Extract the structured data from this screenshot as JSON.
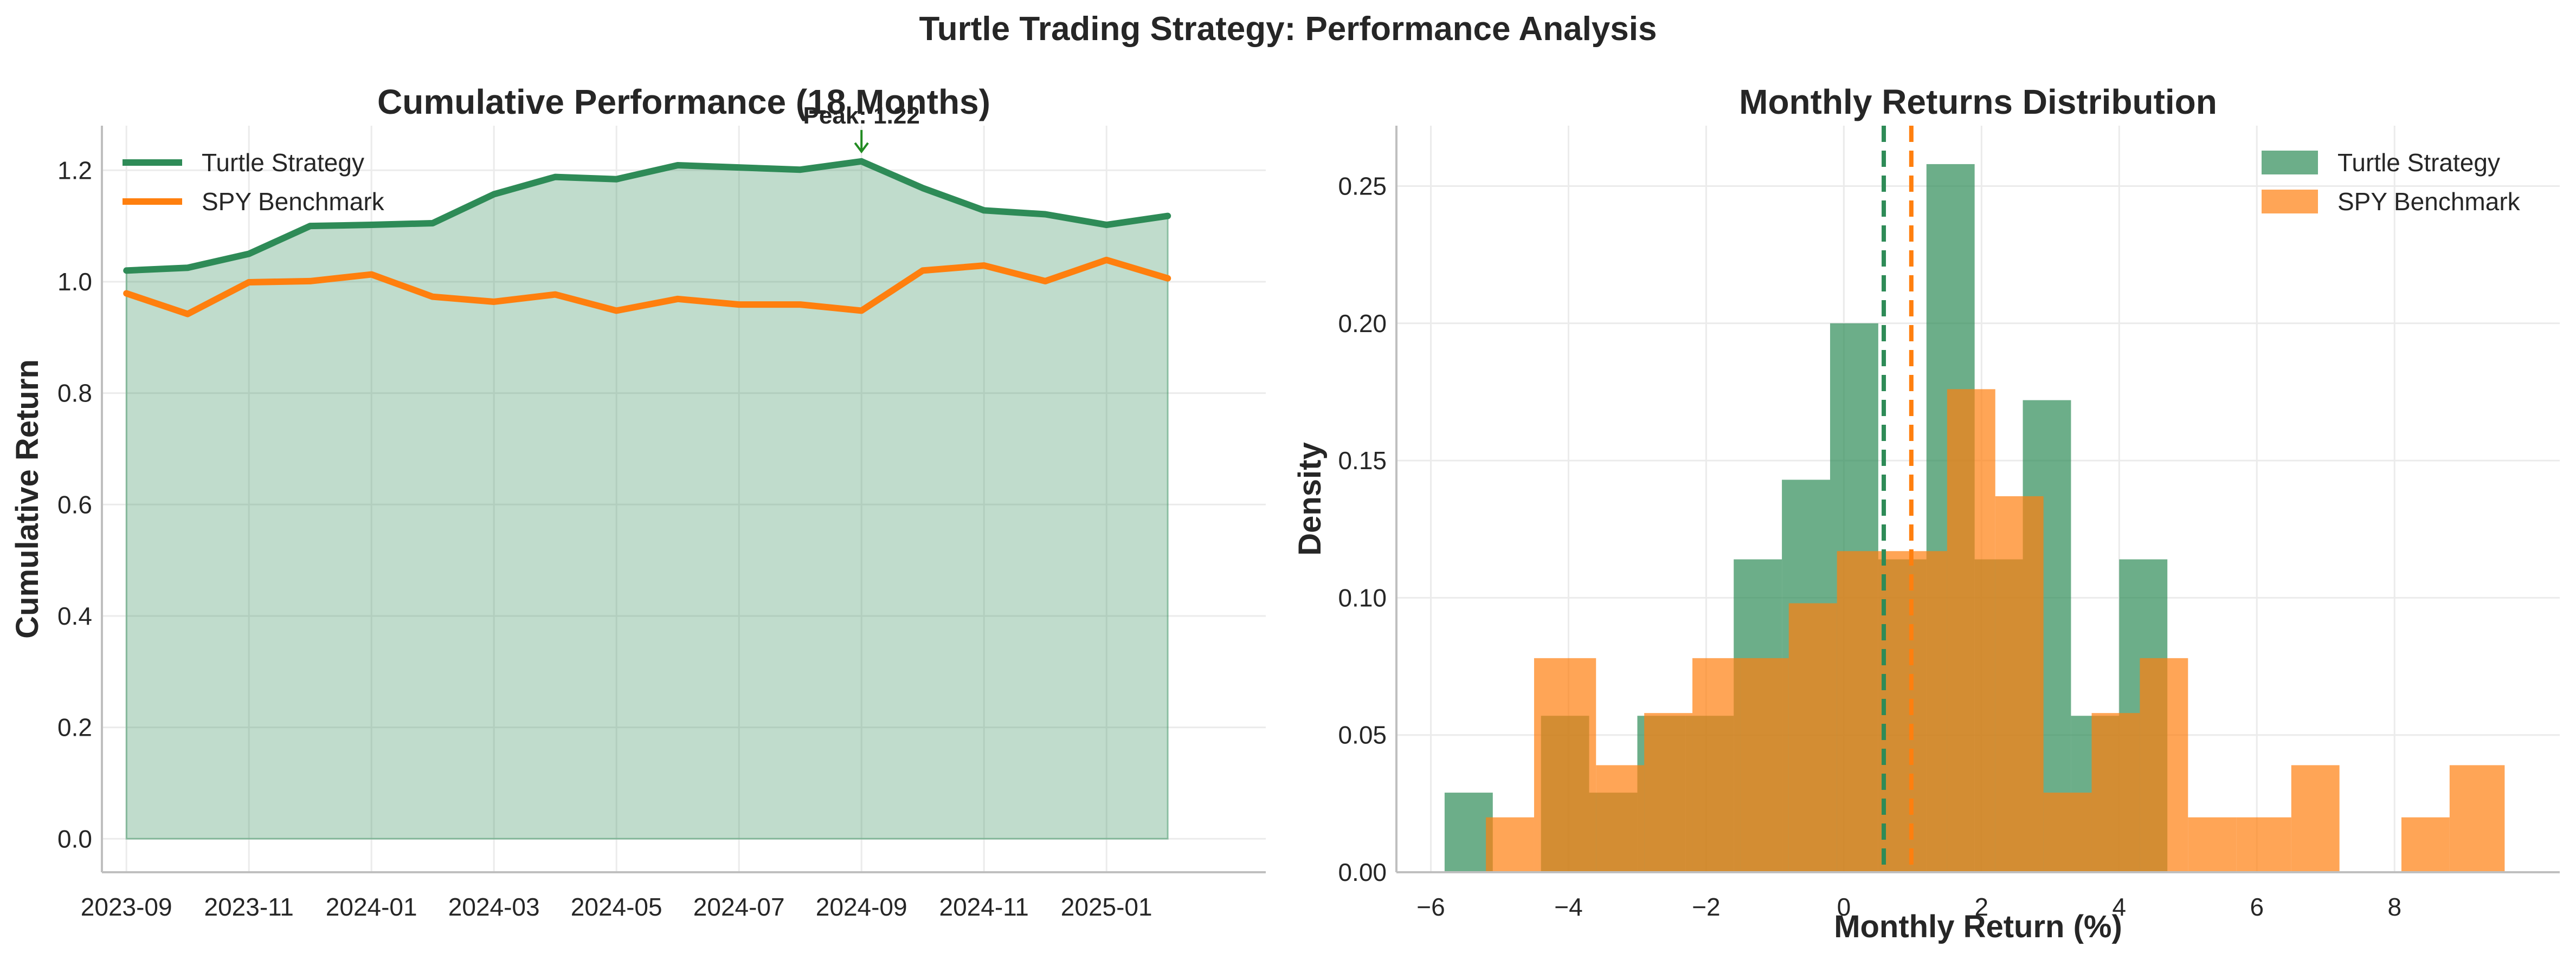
{
  "figure": {
    "suptitle": "Turtle Trading Strategy: Performance Analysis"
  },
  "chart_data": [
    {
      "type": "line",
      "title": "Cumulative Performance (18 Months)",
      "xlabel": "",
      "ylabel": "Cumulative Return",
      "ylim": [
        -0.06,
        1.28
      ],
      "y_ticks": [
        0.0,
        0.2,
        0.4,
        0.6,
        0.8,
        1.0,
        1.2
      ],
      "y_tick_labels": [
        "0.0",
        "0.2",
        "0.4",
        "0.6",
        "0.8",
        "1.0",
        "1.2"
      ],
      "x_start": "2023-09",
      "x_range": [
        -0.4,
        18.6
      ],
      "x_ticks": [
        0,
        2,
        4,
        6,
        8,
        10,
        12,
        14,
        16
      ],
      "x_tick_labels": [
        "2023-09",
        "2023-11",
        "2024-01",
        "2024-03",
        "2024-05",
        "2024-07",
        "2024-09",
        "2024-11",
        "2025-01"
      ],
      "x": [
        0,
        1,
        2,
        3,
        4,
        5,
        6,
        7,
        8,
        9,
        10,
        11,
        12,
        13,
        14,
        15,
        16,
        17
      ],
      "series": [
        {
          "name": "Turtle Strategy",
          "color": "#2e8b57",
          "values": [
            1.02,
            1.025,
            1.05,
            1.1,
            1.102,
            1.105,
            1.157,
            1.188,
            1.184,
            1.209,
            1.205,
            1.201,
            1.216,
            1.168,
            1.128,
            1.121,
            1.102,
            1.118
          ],
          "fill_under": true,
          "fill_color": "#2e8b57"
        },
        {
          "name": "SPY Benchmark",
          "color": "#ff7f0e",
          "values": [
            0.979,
            0.942,
            0.999,
            1.001,
            1.013,
            0.973,
            0.964,
            0.977,
            0.948,
            0.969,
            0.959,
            0.959,
            0.948,
            1.02,
            1.029,
            1.001,
            1.039,
            1.006
          ]
        }
      ],
      "annotation": {
        "text": "Peak: 1.22",
        "x": 12,
        "y": 1.216,
        "color": "#228b22"
      },
      "legend": "top-left",
      "grid": true
    },
    {
      "type": "histogram",
      "title": "Monthly Returns Distribution",
      "xlabel": "Monthly Return (%)",
      "ylabel": "Density",
      "xlim": [
        -6.5,
        10.4
      ],
      "ylim": [
        0,
        0.272
      ],
      "x_ticks": [
        -6,
        -4,
        -2,
        0,
        2,
        4,
        6,
        8
      ],
      "x_tick_labels": [
        "−6",
        "−4",
        "−2",
        "0",
        "2",
        "4",
        "6",
        "8"
      ],
      "y_ticks": [
        0.0,
        0.05,
        0.1,
        0.15,
        0.2,
        0.25
      ],
      "y_tick_labels": [
        "0.00",
        "0.05",
        "0.10",
        "0.15",
        "0.20",
        "0.25"
      ],
      "series": [
        {
          "name": "Turtle Strategy",
          "color": "#2e8b57",
          "bin_edges": [
            -5.8,
            -5.1,
            -4.4,
            -3.7,
            -3.0,
            -2.3,
            -1.6,
            -0.9,
            -0.2,
            0.5,
            1.2,
            1.9,
            2.6,
            3.3,
            4.0,
            4.7
          ],
          "density": [
            0.029,
            0.0,
            0.057,
            0.029,
            0.057,
            0.057,
            0.114,
            0.143,
            0.2,
            0.114,
            0.258,
            0.114,
            0.172,
            0.057,
            0.114
          ],
          "mean": 0.58
        },
        {
          "name": "SPY Benchmark",
          "color": "#ff7f0e",
          "bin_edges": [
            -5.2,
            -4.5,
            -3.6,
            -2.9,
            -2.2,
            -1.5,
            -0.8,
            -0.1,
            0.6,
            1.5,
            2.2,
            2.9,
            3.6,
            4.3,
            5.0,
            5.7,
            6.5,
            7.2,
            8.1,
            8.8,
            9.6
          ],
          "density": [
            0.02,
            0.078,
            0.039,
            0.058,
            0.078,
            0.078,
            0.098,
            0.117,
            0.117,
            0.176,
            0.137,
            0.029,
            0.058,
            0.078,
            0.02,
            0.02,
            0.039,
            0.0,
            0.02,
            0.039
          ],
          "mean": 0.98
        }
      ],
      "legend": "top-right",
      "grid": true
    }
  ]
}
